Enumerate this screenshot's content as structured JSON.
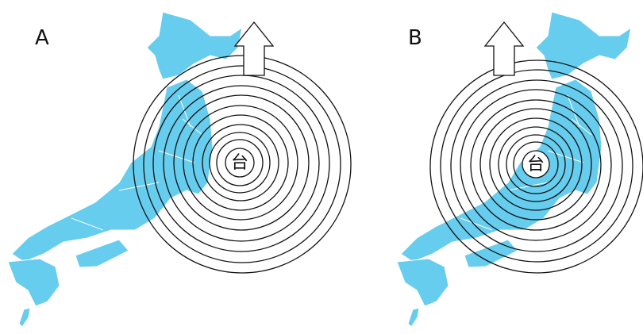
{
  "panels": [
    {
      "label": "A",
      "typhoon": "台"
    },
    {
      "label": "B",
      "typhoon": "台"
    }
  ]
}
